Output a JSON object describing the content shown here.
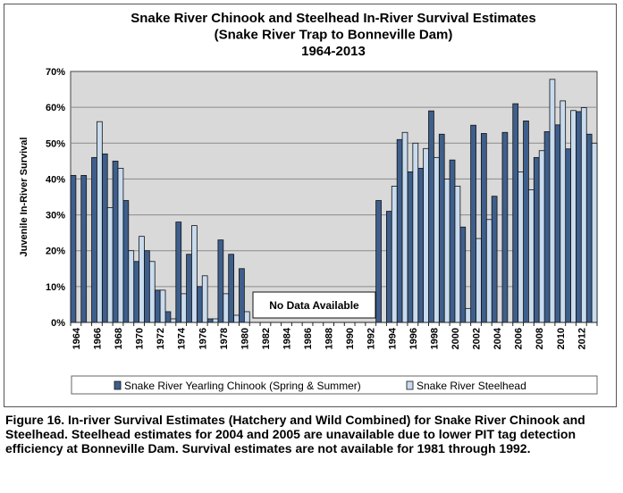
{
  "chart_data": {
    "type": "bar",
    "title": [
      "Snake River Chinook and Steelhead In-River Survival Estimates",
      "(Snake River Trap to Bonneville Dam)",
      "1964-2013"
    ],
    "xlabel": "",
    "ylabel": "Juvenile In-River Survival",
    "ylim": [
      0,
      70
    ],
    "yticks": [
      "0%",
      "10%",
      "20%",
      "30%",
      "40%",
      "50%",
      "60%",
      "70%"
    ],
    "grid": true,
    "legend_position": "bottom",
    "annotation": "No Data Available",
    "categories": [
      1964,
      1965,
      1966,
      1967,
      1968,
      1969,
      1970,
      1971,
      1972,
      1973,
      1974,
      1975,
      1976,
      1977,
      1978,
      1979,
      1980,
      1981,
      1982,
      1983,
      1984,
      1985,
      1986,
      1987,
      1988,
      1989,
      1990,
      1991,
      1992,
      1993,
      1994,
      1995,
      1996,
      1997,
      1998,
      1999,
      2000,
      2001,
      2002,
      2003,
      2004,
      2005,
      2006,
      2007,
      2008,
      2009,
      2010,
      2011,
      2012,
      2013
    ],
    "xtick_labels": [
      "1964",
      "1966",
      "1968",
      "1970",
      "1972",
      "1974",
      "1976",
      "1978",
      "1980",
      "1982",
      "1984",
      "1986",
      "1988",
      "1990",
      "1992",
      "1994",
      "1996",
      "1998",
      "2000",
      "2002",
      "2004",
      "2006",
      "2008",
      "2010",
      "2012"
    ],
    "series": [
      {
        "name": "Snake River Yearling Chinook (Spring & Summer)",
        "color": "#3e5f8c",
        "values": [
          41,
          41,
          46,
          47,
          45,
          34,
          17,
          20,
          9,
          3,
          28,
          19,
          10,
          1,
          23,
          19,
          15,
          null,
          null,
          null,
          null,
          null,
          null,
          null,
          null,
          null,
          null,
          null,
          null,
          34,
          31,
          51,
          42,
          43,
          59,
          52.5,
          45.3,
          26.6,
          55,
          52.7,
          35.2,
          53,
          61,
          56.2,
          46,
          53.2,
          55.1,
          48.4,
          58.8,
          52.5
        ]
      },
      {
        "name": "Snake River Steelhead",
        "color": "#c9dbee",
        "values": [
          null,
          null,
          56,
          32,
          43,
          20,
          24,
          17,
          9,
          1,
          8,
          27,
          13,
          1,
          8,
          2,
          3,
          null,
          null,
          null,
          null,
          null,
          null,
          null,
          null,
          null,
          null,
          null,
          null,
          null,
          38,
          53,
          50,
          48.5,
          46,
          40,
          38,
          3.9,
          23.4,
          28.7,
          null,
          null,
          42,
          37,
          47.9,
          67.8,
          61.8,
          59.1,
          59.9,
          50
        ]
      }
    ]
  },
  "caption": "Figure 16.  In-river Survival Estimates (Hatchery and Wild Combined) for Snake River Chinook and Steelhead.  Steelhead estimates for 2004 and 2005 are unavailable due to lower PIT tag detection efficiency at Bonneville Dam.  Survival estimates are not available for 1981 through 1992."
}
